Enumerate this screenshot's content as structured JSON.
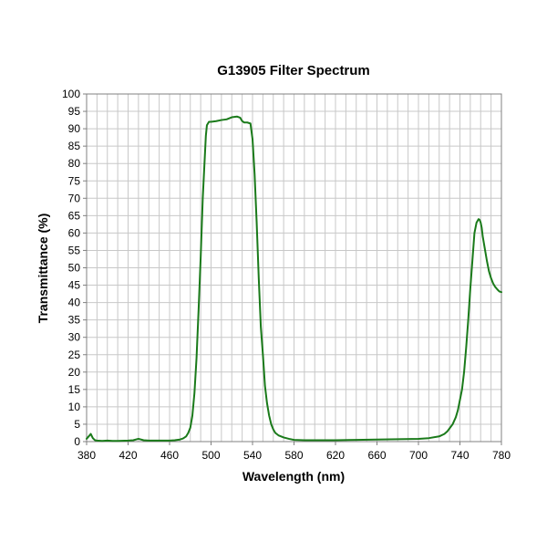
{
  "chart_data": {
    "type": "line",
    "title": "G13905 Filter Spectrum",
    "xlabel": "Wavelength (nm)",
    "ylabel": "Transmittance (%)",
    "xlim": [
      380,
      780
    ],
    "ylim": [
      0,
      100
    ],
    "x_ticks": [
      380,
      420,
      460,
      500,
      540,
      580,
      620,
      660,
      700,
      740,
      780
    ],
    "x_minor_step": 10,
    "y_ticks": [
      0,
      5,
      10,
      15,
      20,
      25,
      30,
      35,
      40,
      45,
      50,
      55,
      60,
      65,
      70,
      75,
      80,
      85,
      90,
      95,
      100
    ],
    "grid": true,
    "legend": "none",
    "series": [
      {
        "color": "#1a7a1a",
        "x": [
          380,
          382,
          384,
          386,
          388,
          390,
          395,
          400,
          405,
          410,
          420,
          425,
          430,
          435,
          440,
          450,
          460,
          465,
          470,
          473,
          476,
          478,
          480,
          482,
          484,
          486,
          488,
          490,
          492,
          494,
          495,
          496,
          498,
          500,
          505,
          510,
          515,
          520,
          525,
          528,
          530,
          532,
          535,
          538,
          540,
          542,
          544,
          546,
          548,
          550,
          552,
          554,
          556,
          558,
          560,
          562,
          565,
          570,
          575,
          580,
          590,
          600,
          620,
          640,
          660,
          680,
          700,
          710,
          720,
          725,
          728,
          730,
          733,
          736,
          738,
          740,
          742,
          744,
          746,
          748,
          750,
          752,
          754,
          756,
          758,
          759,
          760,
          761,
          762,
          764,
          766,
          768,
          770,
          772,
          774,
          776,
          778,
          780
        ],
        "y": [
          0.8,
          1.5,
          2.2,
          1.0,
          0.4,
          0.3,
          0.2,
          0.3,
          0.2,
          0.2,
          0.3,
          0.4,
          0.8,
          0.4,
          0.3,
          0.3,
          0.3,
          0.4,
          0.6,
          0.9,
          1.5,
          2.5,
          4.0,
          7.5,
          14,
          24,
          38,
          53,
          70,
          82,
          88,
          91,
          92,
          92,
          92.2,
          92.5,
          92.7,
          93.3,
          93.5,
          93.2,
          92.2,
          91.8,
          91.8,
          91.5,
          87,
          77,
          63,
          47,
          33,
          25,
          16,
          11,
          7.5,
          5,
          3.5,
          2.5,
          1.8,
          1.2,
          0.8,
          0.5,
          0.4,
          0.4,
          0.4,
          0.5,
          0.6,
          0.7,
          0.8,
          1.0,
          1.5,
          2.2,
          3.0,
          3.8,
          5.0,
          7.0,
          9.0,
          12,
          15,
          20,
          27,
          35,
          44,
          52,
          60,
          63,
          64,
          63.8,
          63,
          61.5,
          59,
          55.5,
          52,
          49,
          47,
          45.5,
          44.5,
          43.8,
          43.2,
          43
        ]
      }
    ]
  }
}
